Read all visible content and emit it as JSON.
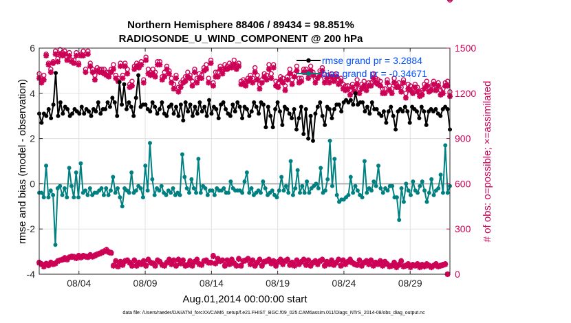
{
  "chart_data": {
    "type": "line",
    "title": "Northern Hemisphere 88406 / 89434 = 98.851%",
    "subtitle": "RADIOSONDE_U_WIND_COMPONENT @ 200 hPa",
    "xlabel": "Aug.01,2014 00:00:00 start",
    "ylabel": "rmse and bias (model - observation)",
    "y2label": "# of obs: o=possible; ×=assimilated",
    "footnote": "data file: /Users/raeder/DAI/ATM_forcXX/CAM6_setup/f.e21.FHIST_BGC.f09_025.CAM6assim.011/Diags_NTrS_2014-08/obs_diag_output.nc",
    "x_ticks": [
      {
        "day": 4,
        "label": "08/04"
      },
      {
        "day": 9,
        "label": "08/09"
      },
      {
        "day": 14,
        "label": "08/14"
      },
      {
        "day": 19,
        "label": "08/19"
      },
      {
        "day": 24,
        "label": "08/24"
      },
      {
        "day": 29,
        "label": "08/29"
      }
    ],
    "xlim": [
      1,
      32
    ],
    "ylim": [
      -4,
      6
    ],
    "yticks": [
      -4,
      -2,
      0,
      2,
      4,
      6
    ],
    "y2lim": [
      0,
      1500
    ],
    "y2ticks": [
      0,
      300,
      600,
      900,
      1200,
      1500
    ],
    "colors": {
      "rmse": "#000000",
      "bias": "#008080",
      "counts": "#cc0055",
      "legend_text": "#0050ff",
      "zero_line": "#b0b0b0"
    },
    "legend": [
      {
        "name": "rmse",
        "label": "rmse grand pr = 3.2884"
      },
      {
        "name": "bias",
        "label": "bias grand pr = -0.34671"
      }
    ],
    "series": [
      {
        "name": "rmse",
        "values": [
          3.1,
          2.7,
          3.1,
          3.0,
          3.3,
          2.9,
          3.5,
          4.9,
          3.0,
          3.6,
          3.1,
          3.4,
          3.3,
          3.0,
          3.1,
          3.3,
          3.2,
          3.1,
          3.4,
          3.1,
          3.3,
          3.2,
          3.0,
          3.3,
          3.2,
          3.6,
          3.1,
          3.3,
          3.3,
          3.6,
          3.4,
          3.8,
          3.6,
          3.0,
          4.5,
          3.5,
          4.4,
          3.3,
          3.6,
          3.4,
          3.0,
          3.8,
          4.8,
          3.4,
          3.5,
          3.5,
          3.3,
          3.2,
          3.6,
          3.4,
          3.1,
          3.3,
          3.6,
          3.1,
          3.0,
          3.4,
          3.5,
          3.1,
          3.4,
          3.0,
          3.5,
          2.8,
          3.6,
          3.2,
          3.5,
          3.0,
          3.4,
          3.1,
          3.6,
          3.2,
          3.4,
          3.0,
          3.7,
          3.1,
          3.4,
          3.3,
          2.9,
          3.5,
          3.6,
          3.3,
          3.1,
          3.0,
          3.5,
          3.2,
          3.6,
          3.4,
          2.9,
          3.4,
          3.3,
          3.0,
          3.2,
          3.6,
          3.4,
          3.1,
          3.6,
          3.5,
          2.5,
          3.4,
          3.0,
          2.5,
          3.3,
          3.6,
          3.2,
          2.6,
          3.4,
          3.3,
          3.1,
          2.9,
          3.3,
          2.4,
          2.9,
          3.4,
          2.2,
          3.3,
          2.0,
          3.0,
          1.9,
          3.1,
          3.4,
          3.6,
          3.0,
          2.6,
          3.4,
          3.3,
          2.9,
          3.3,
          3.5,
          3.5,
          3.2,
          3.6,
          3.7,
          3.6,
          3.7,
          3.5,
          4.0,
          3.5,
          3.6,
          3.6,
          3.2,
          3.4,
          3.1,
          3.6,
          3.3,
          3.3,
          3.1,
          3.0,
          3.2,
          2.7,
          3.2,
          3.4,
          3.0,
          2.4,
          3.2,
          3.3,
          3.2,
          3.4,
          3.2,
          2.7,
          3.4,
          3.3,
          3.2,
          2.9,
          3.4,
          3.2,
          2.6,
          3.2,
          3.3,
          3.2,
          3.3,
          3.1,
          3.0,
          3.3,
          3.4,
          3.3,
          2.4
        ]
      },
      {
        "name": "bias",
        "values": [
          -0.4,
          -0.4,
          -0.6,
          0.8,
          -0.6,
          -0.3,
          -0.5,
          -2.7,
          -0.2,
          -0.1,
          -0.5,
          -0.2,
          -0.6,
          0.7,
          -0.1,
          -0.6,
          0.5,
          -0.6,
          0.9,
          -0.4,
          -0.3,
          -0.5,
          -0.2,
          -0.5,
          -0.4,
          -0.4,
          -0.3,
          -0.2,
          -0.5,
          -0.2,
          -0.5,
          -0.3,
          0.3,
          -0.4,
          -0.2,
          -0.6,
          -1.0,
          -0.2,
          -0.3,
          -0.4,
          0.5,
          -0.4,
          -0.3,
          -0.1,
          -0.2,
          -0.6,
          0.8,
          -0.3,
          1.8,
          0.2,
          -0.5,
          -0.2,
          -0.3,
          -0.1,
          -0.4,
          -0.5,
          -0.3,
          -0.4,
          -0.2,
          -0.5,
          -0.4,
          -0.5,
          1.3,
          0.3,
          -0.2,
          -0.4,
          0.2,
          -0.2,
          -0.4,
          1.1,
          -0.4,
          -0.1,
          -0.2,
          -0.5,
          -0.3,
          -0.3,
          -0.5,
          -0.2,
          -0.3,
          -0.3,
          -0.2,
          -0.4,
          -0.4,
          0.1,
          -0.2,
          -0.3,
          -0.3,
          -0.3,
          -0.4,
          0.1,
          0.5,
          -0.4,
          -0.2,
          -0.5,
          -0.4,
          -0.3,
          -0.4,
          0.1,
          -0.2,
          -0.5,
          -0.4,
          -0.3,
          -0.5,
          -0.6,
          -0.3,
          0.3,
          -0.3,
          -0.1,
          -0.4,
          1.0,
          -0.5,
          -0.2,
          0.6,
          -0.4,
          -0.1,
          -0.4,
          0.1,
          -0.4,
          -0.2,
          -0.1,
          0.0,
          -0.2,
          0.7,
          -0.4,
          -0.3,
          0.2,
          1.9,
          -0.1,
          1.1,
          -0.5,
          -0.8,
          -0.7,
          -0.7,
          -0.6,
          -0.5,
          0.3,
          -0.4,
          -0.1,
          -0.3,
          -0.5,
          -0.6,
          1.0,
          -0.4,
          -0.2,
          -0.3,
          0.1,
          -0.1,
          0.8,
          -0.2,
          -0.4,
          -0.2,
          -0.3,
          -0.1,
          -0.1,
          -0.6,
          -0.6,
          -1.6,
          -0.2,
          -0.8,
          0.0,
          -0.3,
          -0.5,
          0.1,
          -0.3,
          -0.4,
          -0.1,
          0.1,
          -0.3,
          -0.8,
          -0.4,
          0.2,
          -0.5,
          -0.3,
          -0.2,
          0.4,
          -0.4,
          1.7,
          -0.4,
          -0.1
        ]
      }
    ],
    "obs_possible_upper": [
      1330,
      1290,
      1320,
      1460,
      1400,
      1360,
      1410,
      1480,
      1430,
      1490,
      1470,
      1480,
      1440,
      1470,
      1420,
      1420,
      1470,
      1400,
      1460,
      1480,
      1360,
      1480,
      1400,
      1360,
      1320,
      1370,
      1360,
      1360,
      1360,
      1340,
      1340,
      1360,
      1390,
      1320,
      1300,
      1400,
      1320,
      1400,
      1360,
      1260,
      1280,
      1380,
      1400,
      1390,
      1410,
      1290,
      1440,
      1360,
      1340,
      1360,
      1340,
      1410,
      1410,
      1310,
      1340,
      1380,
      1350,
      1300,
      1260,
      1320,
      1240,
      1270,
      1290,
      1310,
      1340,
      1320,
      1280,
      1360,
      1300,
      1330,
      1320,
      1370,
      1390,
      1300,
      1420,
      1270,
      1340,
      1340,
      1380,
      1360,
      1390,
      1380,
      1400,
      1390,
      1420,
      1390,
      1400,
      1280,
      1290,
      1280,
      1300,
      1320,
      1300,
      1370,
      1320,
      1260,
      1290,
      1330,
      1320,
      1390,
      1330,
      1390,
      1280,
      1270,
      1310,
      1300,
      1250,
      1310,
      1360,
      1290,
      1330,
      1380,
      1300,
      1300,
      1360,
      1360,
      1330,
      1380,
      1340,
      1300,
      1320,
      1350,
      1370,
      1300,
      1320,
      1300,
      1330,
      1310,
      1330,
      1290,
      1300,
      1260,
      1250,
      1250,
      1220,
      1260,
      1240,
      1290,
      1230,
      1260,
      1280,
      1250,
      1270,
      1270,
      1330,
      1300,
      1290,
      1280,
      1230,
      1230,
      1290,
      1250,
      1230,
      1300,
      1260,
      1270,
      1240,
      1290,
      1200,
      1260,
      1250,
      1230,
      1260,
      1240,
      1210,
      1220,
      1260,
      1280,
      1240,
      1250,
      1280,
      1250,
      1270,
      1220,
      1230,
      1270,
      1280,
      1210
    ],
    "obs_assimilated_upper": [
      1300,
      1270,
      1290,
      1450,
      1390,
      1340,
      1400,
      1460,
      1410,
      1460,
      1450,
      1460,
      1420,
      1450,
      1410,
      1400,
      1450,
      1390,
      1450,
      1450,
      1340,
      1460,
      1380,
      1340,
      1290,
      1350,
      1340,
      1340,
      1330,
      1320,
      1310,
      1340,
      1360,
      1300,
      1280,
      1380,
      1300,
      1380,
      1330,
      1240,
      1250,
      1360,
      1380,
      1370,
      1390,
      1270,
      1420,
      1330,
      1320,
      1330,
      1310,
      1390,
      1390,
      1290,
      1310,
      1360,
      1330,
      1270,
      1230,
      1300,
      1210,
      1240,
      1270,
      1280,
      1310,
      1300,
      1250,
      1340,
      1270,
      1300,
      1300,
      1350,
      1360,
      1270,
      1400,
      1250,
      1310,
      1310,
      1360,
      1330,
      1360,
      1360,
      1370,
      1370,
      1390,
      1360,
      1380,
      1260,
      1260,
      1250,
      1280,
      1300,
      1270,
      1340,
      1290,
      1230,
      1270,
      1310,
      1290,
      1360,
      1300,
      1370,
      1250,
      1240,
      1290,
      1270,
      1220,
      1290,
      1330,
      1260,
      1310,
      1350,
      1270,
      1280,
      1340,
      1340,
      1300,
      1350,
      1320,
      1270,
      1300,
      1320,
      1350,
      1270,
      1300,
      1270,
      1310,
      1280,
      1310,
      1260,
      1280,
      1230,
      1220,
      1230,
      1190,
      1240,
      1210,
      1260,
      1200,
      1230,
      1250,
      1220,
      1250,
      1250,
      1300,
      1270,
      1260,
      1250,
      1200,
      1200,
      1270,
      1220,
      1200,
      1270,
      1240,
      1240,
      1210,
      1270,
      1170,
      1230,
      1220,
      1200,
      1240,
      1210,
      1180,
      1190,
      1230,
      1250,
      1210,
      1220,
      1260,
      1220,
      1250,
      1190,
      1200,
      1250,
      1250,
      1180
    ],
    "obs_possible_lower": [
      80,
      70,
      55,
      72,
      60,
      80,
      70,
      75,
      90,
      95,
      100,
      110,
      100,
      115,
      120,
      118,
      110,
      125,
      115,
      125,
      120,
      118,
      130,
      120,
      128,
      135,
      140,
      148,
      155,
      165,
      150,
      145,
      60,
      90,
      55,
      85,
      65,
      90,
      95,
      80,
      60,
      95,
      60,
      80,
      70,
      90,
      60,
      100,
      80,
      75,
      60,
      95,
      85,
      65,
      60,
      80,
      100,
      70,
      95,
      60,
      100,
      75,
      95,
      60,
      65,
      90,
      60,
      85,
      100,
      70,
      65,
      90,
      95,
      80,
      80,
      125,
      75,
      105,
      90,
      95,
      60,
      95,
      70,
      100,
      75,
      60,
      105,
      60,
      90,
      95,
      105,
      70,
      95,
      60,
      80,
      100,
      60,
      85,
      90,
      100,
      75,
      90,
      60,
      85,
      100,
      70,
      90,
      100,
      65,
      80,
      60,
      95,
      70,
      85,
      100,
      65,
      95,
      60,
      80,
      90,
      70,
      90,
      100,
      60,
      85,
      70,
      95,
      65,
      80,
      100,
      60,
      95,
      70,
      85,
      100,
      80,
      70,
      65,
      95,
      60,
      80,
      90,
      70,
      95,
      60,
      80,
      70,
      90,
      60,
      85,
      70,
      55,
      60,
      80,
      50,
      65,
      90,
      55,
      60,
      70,
      50,
      65,
      60,
      70,
      50,
      65,
      55,
      70,
      60,
      50,
      60,
      70,
      55,
      60,
      65,
      70,
      0
    ],
    "obs_assimilated_lower": [
      75,
      65,
      50,
      68,
      58,
      75,
      65,
      70,
      85,
      92,
      95,
      105,
      96,
      110,
      115,
      112,
      105,
      120,
      110,
      120,
      115,
      112,
      125,
      115,
      122,
      130,
      135,
      142,
      150,
      158,
      145,
      140,
      55,
      85,
      50,
      80,
      60,
      85,
      90,
      75,
      55,
      90,
      55,
      75,
      65,
      85,
      55,
      95,
      75,
      70,
      55,
      90,
      80,
      60,
      55,
      75,
      95,
      65,
      90,
      55,
      95,
      70,
      90,
      55,
      60,
      85,
      55,
      80,
      95,
      65,
      60,
      85,
      90,
      75,
      75,
      118,
      70,
      100,
      85,
      90,
      55,
      90,
      65,
      95,
      70,
      55,
      100,
      55,
      85,
      90,
      100,
      65,
      90,
      55,
      75,
      95,
      55,
      80,
      85,
      95,
      70,
      85,
      55,
      80,
      95,
      65,
      85,
      95,
      60,
      75,
      55,
      90,
      65,
      80,
      95,
      60,
      90,
      55,
      75,
      85,
      65,
      85,
      95,
      55,
      80,
      65,
      90,
      60,
      75,
      95,
      55,
      90,
      65,
      80,
      95,
      75,
      65,
      60,
      90,
      55,
      75,
      85,
      65,
      90,
      55,
      75,
      65,
      85,
      55,
      80,
      65,
      50,
      55,
      75,
      45,
      60,
      85,
      50,
      55,
      65,
      45,
      60,
      55,
      65,
      45,
      60,
      50,
      65,
      55,
      45,
      55,
      65,
      50,
      55,
      60,
      65,
      0
    ]
  }
}
